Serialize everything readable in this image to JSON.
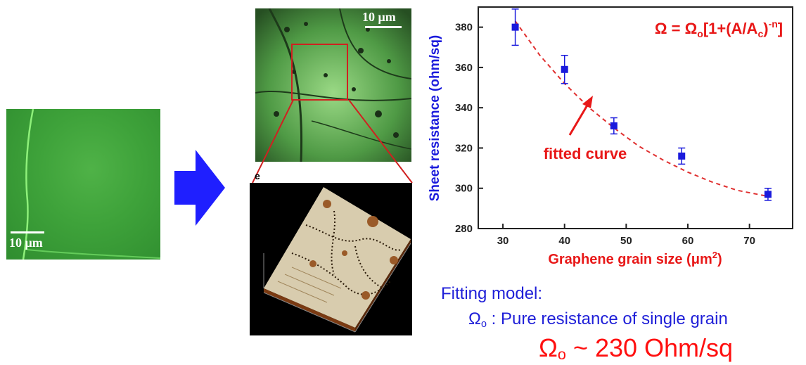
{
  "images": {
    "micro_left": {
      "scale_label": "10 μm"
    },
    "micro_grain": {
      "scale_label": "10 μm"
    },
    "panel_e": {
      "label": "e"
    },
    "arrow": {
      "color": "#1f1fff",
      "icon": "right-arrow-icon"
    }
  },
  "colors": {
    "series": "#1a1adc",
    "fit": "#e03030",
    "annotation": "#e81818",
    "axis_title": "#1a1adc"
  },
  "chart_data": {
    "type": "scatter",
    "xlabel": "Graphene grain size (μm2)",
    "xlabel_main": "Graphene grain size (μm",
    "xlabel_sup": "2",
    "xlabel_end": ")",
    "ylabel": "Sheet resistance (ohm/sq)",
    "xlim": [
      26,
      77
    ],
    "ylim": [
      280,
      390
    ],
    "xticks": [
      30,
      40,
      50,
      60,
      70
    ],
    "yticks": [
      280,
      300,
      320,
      340,
      360,
      380
    ],
    "grid": false,
    "series": [
      {
        "x": [
          32,
          40,
          48,
          59,
          73
        ],
        "y": [
          380,
          359,
          331,
          316,
          297
        ],
        "error": [
          9,
          7,
          4,
          4,
          3
        ]
      }
    ],
    "fit_curve": {
      "style": "dashed",
      "x": [
        32,
        36,
        40,
        44,
        48,
        52,
        56,
        60,
        64,
        68,
        73
      ],
      "y": [
        383,
        366,
        352,
        340,
        330,
        321,
        314,
        308,
        303,
        299,
        296
      ]
    },
    "annotations": {
      "formula": "Ω = Ωo[1+(A/Ac)-n]",
      "fit_label": "fitted curve"
    }
  },
  "fitting_model": {
    "title": "Fitting model:",
    "omega_symbol": "Ω",
    "omega_sub": "o",
    "description": " : Pure resistance of single grain",
    "value": " ~ 230 Ohm/sq"
  }
}
